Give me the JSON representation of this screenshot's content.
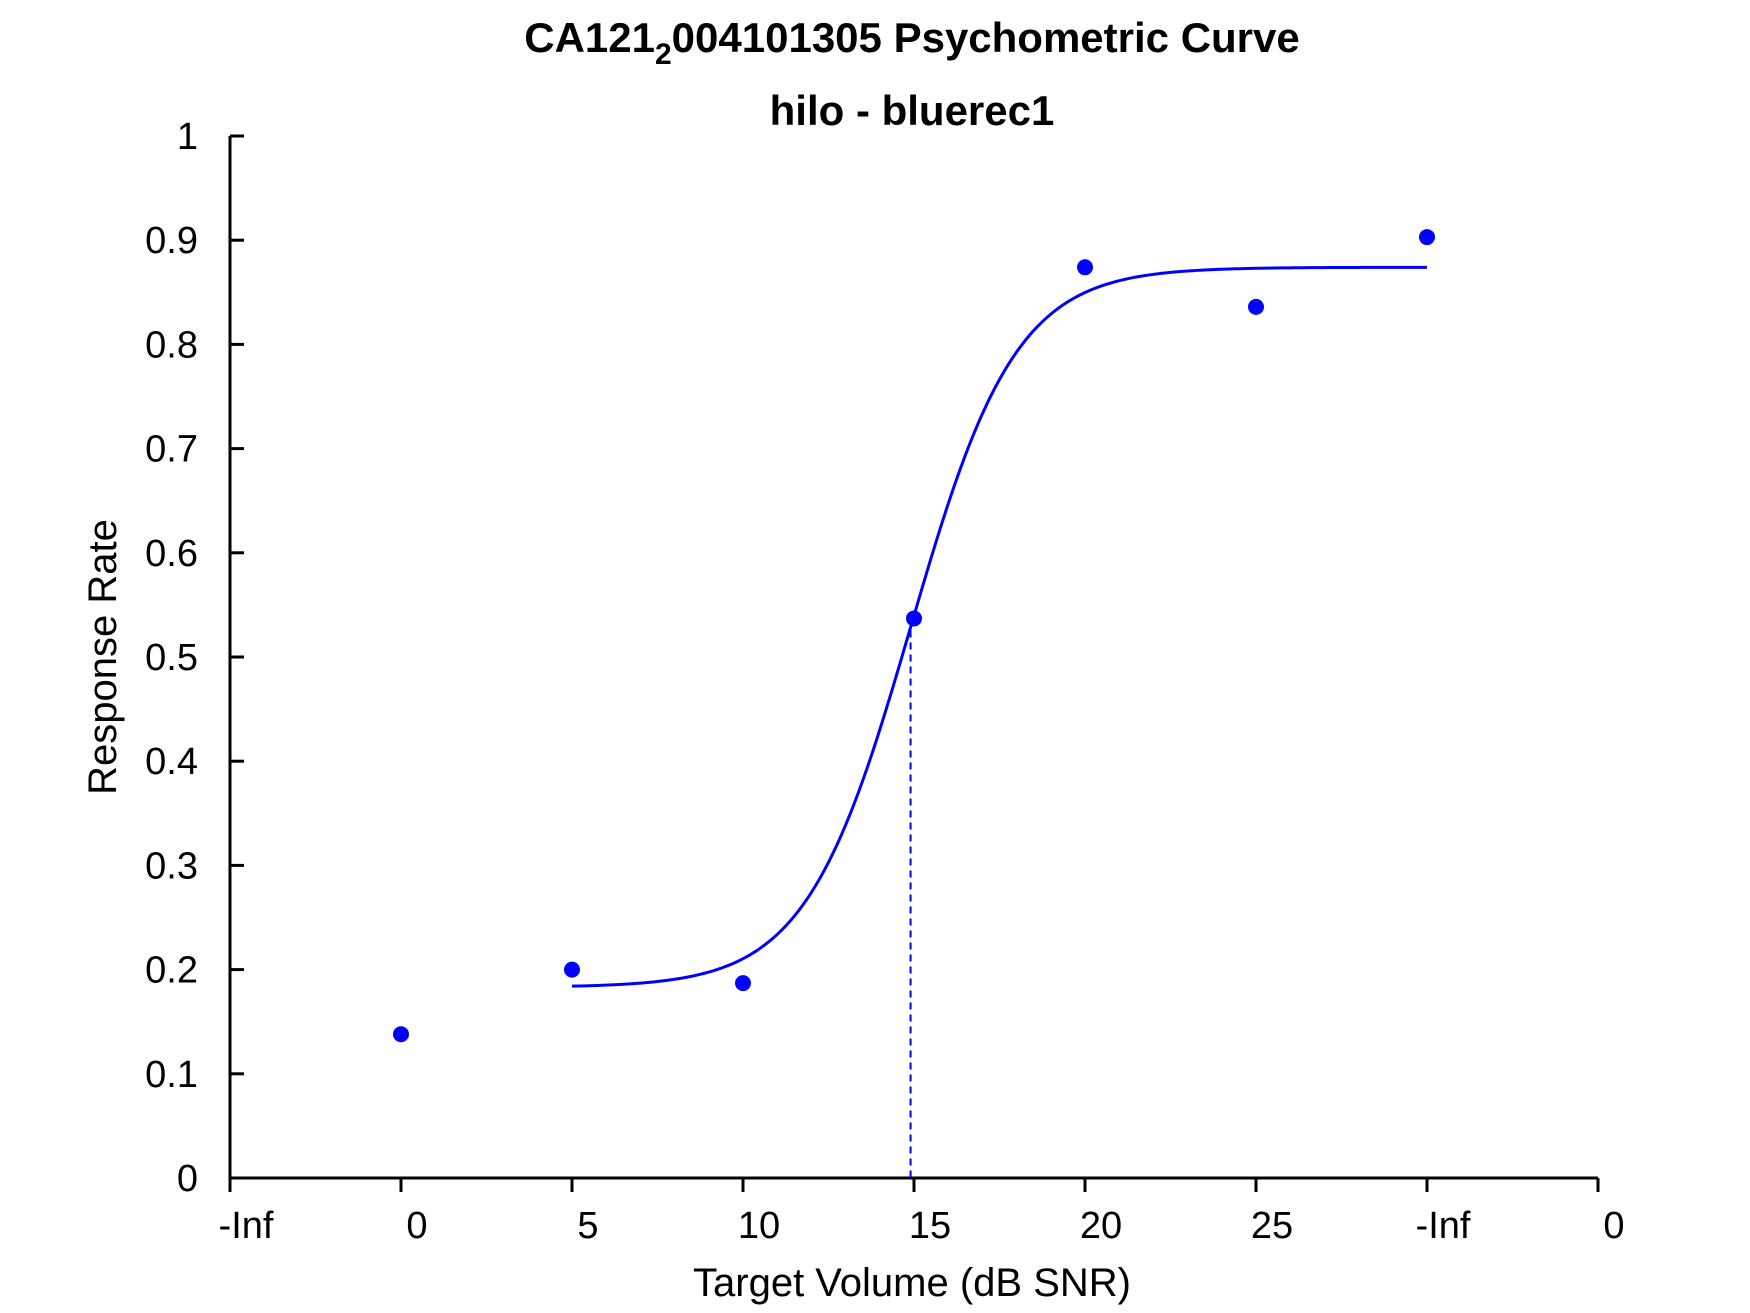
{
  "chart_data": {
    "type": "scatter",
    "title_main": "CA121",
    "title_subscript": "2",
    "title_rest": "004101305 Psychometric Curve",
    "subtitle": "hilo - bluerec1",
    "xlabel": "Target Volume (dB SNR)",
    "ylabel": "Response Rate",
    "xlim": [
      -8,
      32
    ],
    "ylim": [
      0,
      1
    ],
    "x_ticks": [
      {
        "value": -8,
        "label": "-Inf"
      },
      {
        "value": -3,
        "label": "0"
      },
      {
        "value": 2,
        "label": "5"
      },
      {
        "value": 7,
        "label": "10"
      },
      {
        "value": 12,
        "label": "15"
      },
      {
        "value": 17,
        "label": "20"
      },
      {
        "value": 22,
        "label": "25"
      },
      {
        "value": 27,
        "label": "-Inf"
      },
      {
        "value": 32,
        "label": "0"
      }
    ],
    "y_ticks": [
      {
        "value": 0,
        "label": "0"
      },
      {
        "value": 0.1,
        "label": "0.1"
      },
      {
        "value": 0.2,
        "label": "0.2"
      },
      {
        "value": 0.3,
        "label": "0.3"
      },
      {
        "value": 0.4,
        "label": "0.4"
      },
      {
        "value": 0.5,
        "label": "0.5"
      },
      {
        "value": 0.6,
        "label": "0.6"
      },
      {
        "value": 0.7,
        "label": "0.7"
      },
      {
        "value": 0.8,
        "label": "0.8"
      },
      {
        "value": 0.9,
        "label": "0.9"
      },
      {
        "value": 1,
        "label": "1"
      }
    ],
    "points": [
      {
        "x": -3,
        "y": 0.138
      },
      {
        "x": 2,
        "y": 0.2
      },
      {
        "x": 7,
        "y": 0.187
      },
      {
        "x": 12,
        "y": 0.537
      },
      {
        "x": 17,
        "y": 0.874
      },
      {
        "x": 22,
        "y": 0.836
      },
      {
        "x": 27,
        "y": 0.903
      }
    ],
    "fit": {
      "x_range": [
        2,
        27
      ],
      "lower": 0.183,
      "upper": 0.874,
      "midpoint": 11.9,
      "slope": 0.65
    },
    "threshold": {
      "x": 11.9,
      "y": 0.537
    },
    "color": "#0000ff",
    "grid": false,
    "legend": "none"
  }
}
